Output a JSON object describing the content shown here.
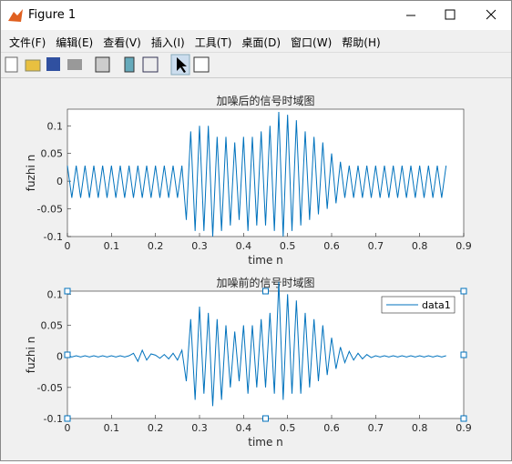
{
  "window": {
    "title": "Figure 1",
    "menu": [
      "文件(F)",
      "编辑(E)",
      "查看(V)",
      "插入(I)",
      "工具(T)",
      "桌面(D)",
      "窗口(W)",
      "帮助(H)"
    ]
  },
  "chart_data": [
    {
      "type": "line",
      "title": "加噪后的信号时域图",
      "x_label": "time n",
      "y_label": "fuzhi n",
      "xlim": [
        0,
        0.9
      ],
      "xticks": [
        0,
        0.1,
        0.2,
        0.3,
        0.4,
        0.5,
        0.6,
        0.7,
        0.8,
        0.9
      ],
      "ylim": [
        -0.1,
        0.13
      ],
      "yticks": [
        -0.1,
        -0.05,
        0,
        0.05,
        0.1
      ],
      "x": [
        0,
        0.01,
        0.02,
        0.03,
        0.04,
        0.05,
        0.06,
        0.07,
        0.08,
        0.09,
        0.1,
        0.11,
        0.12,
        0.13,
        0.14,
        0.15,
        0.16,
        0.17,
        0.18,
        0.19,
        0.2,
        0.21,
        0.22,
        0.23,
        0.24,
        0.25,
        0.26,
        0.27,
        0.28,
        0.29,
        0.3,
        0.31,
        0.32,
        0.33,
        0.34,
        0.35,
        0.36,
        0.37,
        0.38,
        0.39,
        0.4,
        0.41,
        0.42,
        0.43,
        0.44,
        0.45,
        0.46,
        0.47,
        0.48,
        0.49,
        0.5,
        0.51,
        0.52,
        0.53,
        0.54,
        0.55,
        0.56,
        0.57,
        0.58,
        0.59,
        0.6,
        0.61,
        0.62,
        0.63,
        0.64,
        0.65,
        0.66,
        0.67,
        0.68,
        0.69,
        0.7,
        0.71,
        0.72,
        0.73,
        0.74,
        0.75,
        0.76,
        0.77,
        0.78,
        0.79,
        0.8,
        0.81,
        0.82,
        0.83,
        0.84,
        0.85,
        0.86
      ],
      "series": [
        {
          "color": "#0072bd",
          "values": [
            0.028,
            -0.03,
            0.028,
            -0.03,
            0.028,
            -0.03,
            0.028,
            -0.03,
            0.028,
            -0.03,
            0.028,
            -0.03,
            0.028,
            -0.03,
            0.028,
            -0.03,
            0.028,
            -0.03,
            0.028,
            -0.03,
            0.028,
            -0.03,
            0.028,
            -0.03,
            0.028,
            -0.03,
            0.028,
            -0.07,
            0.09,
            -0.09,
            0.1,
            -0.09,
            0.1,
            -0.1,
            0.08,
            -0.09,
            0.08,
            -0.08,
            0.07,
            -0.07,
            0.08,
            -0.09,
            0.08,
            -0.08,
            0.09,
            -0.08,
            0.1,
            -0.09,
            0.125,
            -0.1,
            0.12,
            -0.09,
            0.11,
            -0.08,
            0.09,
            -0.07,
            0.08,
            -0.06,
            0.07,
            -0.05,
            0.05,
            -0.04,
            0.035,
            -0.03,
            0.028,
            -0.03,
            0.028,
            -0.03,
            0.028,
            -0.03,
            0.028,
            -0.03,
            0.028,
            -0.03,
            0.028,
            -0.03,
            0.028,
            -0.03,
            0.028,
            -0.03,
            0.028,
            -0.03,
            0.028,
            -0.03,
            0.028,
            -0.03,
            0.028
          ]
        }
      ]
    },
    {
      "type": "line",
      "title": "加噪前的信号时域图",
      "x_label": "time n",
      "y_label": "fuzhi n",
      "xlim": [
        0,
        0.9
      ],
      "xticks": [
        0,
        0.1,
        0.2,
        0.3,
        0.4,
        0.5,
        0.6,
        0.7,
        0.8,
        0.9
      ],
      "ylim": [
        -0.1,
        0.105
      ],
      "yticks": [
        -0.1,
        -0.05,
        0,
        0.05,
        0.1
      ],
      "legend": "top-right",
      "x": [
        0,
        0.01,
        0.02,
        0.03,
        0.04,
        0.05,
        0.06,
        0.07,
        0.08,
        0.09,
        0.1,
        0.11,
        0.12,
        0.13,
        0.14,
        0.15,
        0.16,
        0.17,
        0.18,
        0.19,
        0.2,
        0.21,
        0.22,
        0.23,
        0.24,
        0.25,
        0.26,
        0.27,
        0.28,
        0.29,
        0.3,
        0.31,
        0.32,
        0.33,
        0.34,
        0.35,
        0.36,
        0.37,
        0.38,
        0.39,
        0.4,
        0.41,
        0.42,
        0.43,
        0.44,
        0.45,
        0.46,
        0.47,
        0.48,
        0.49,
        0.5,
        0.51,
        0.52,
        0.53,
        0.54,
        0.55,
        0.56,
        0.57,
        0.58,
        0.59,
        0.6,
        0.61,
        0.62,
        0.63,
        0.64,
        0.65,
        0.66,
        0.67,
        0.68,
        0.69,
        0.7,
        0.71,
        0.72,
        0.73,
        0.74,
        0.75,
        0.76,
        0.77,
        0.78,
        0.79,
        0.8,
        0.81,
        0.82,
        0.83,
        0.84,
        0.85,
        0.86
      ],
      "series": [
        {
          "name": "data1",
          "color": "#0072bd",
          "values": [
            0.001,
            -0.001,
            0.001,
            -0.001,
            0.001,
            -0.001,
            0.001,
            -0.001,
            0.001,
            -0.001,
            0.001,
            -0.001,
            0.001,
            -0.001,
            0.001,
            0.005,
            -0.008,
            0.01,
            -0.006,
            0.004,
            0.002,
            -0.003,
            0.003,
            -0.004,
            0.005,
            -0.006,
            0.01,
            -0.04,
            0.06,
            -0.07,
            0.08,
            -0.06,
            0.07,
            -0.08,
            0.06,
            -0.07,
            0.05,
            -0.05,
            0.04,
            -0.04,
            0.05,
            -0.06,
            0.05,
            -0.05,
            0.06,
            -0.05,
            0.07,
            -0.06,
            0.12,
            -0.07,
            0.1,
            -0.06,
            0.09,
            -0.06,
            0.07,
            -0.05,
            0.06,
            -0.04,
            0.05,
            -0.03,
            0.03,
            -0.02,
            0.015,
            -0.01,
            0.008,
            -0.006,
            0.005,
            -0.004,
            0.003,
            -0.002,
            0.001,
            -0.001,
            0.001,
            -0.001,
            0.001,
            -0.001,
            0.001,
            -0.001,
            0.001,
            -0.001,
            0.001,
            -0.001,
            0.001,
            -0.001,
            0.001,
            -0.001,
            0.001
          ]
        }
      ]
    }
  ]
}
